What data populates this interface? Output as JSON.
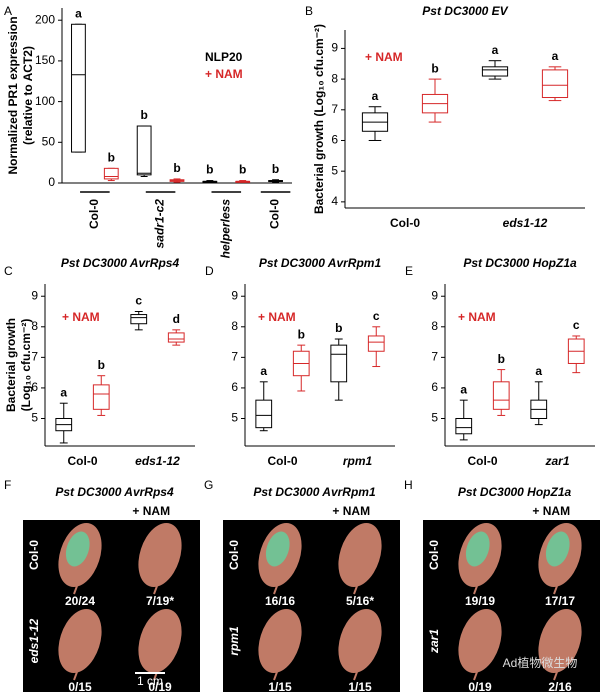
{
  "chart_data": [
    {
      "type": "box",
      "panel": "A",
      "ylabel": [
        "Normalized PR1 expression",
        "(relative to ACT2)"
      ],
      "legend": [
        {
          "name": "NLP20",
          "color": "#000000"
        },
        {
          "name": "+ NAM",
          "color": "#d62728"
        }
      ],
      "groups": [
        "Col-0",
        "sadr1-c2",
        "helperless",
        "Col-0"
      ],
      "ylim": [
        0,
        215
      ],
      "yticks": [
        0,
        50,
        100,
        150,
        200
      ],
      "boxes": [
        {
          "color": "#000000",
          "letter": "a",
          "low": 38,
          "q1": 38,
          "median": 133,
          "q3": 195,
          "high": 195
        },
        {
          "color": "#d62728",
          "letter": "b",
          "low": 3,
          "q1": 5,
          "median": 8,
          "q3": 18,
          "high": 18
        },
        {
          "color": "#000000",
          "letter": "b",
          "low": 8,
          "q1": 10,
          "median": 12,
          "q3": 70,
          "high": 70
        },
        {
          "color": "#d62728",
          "letter": "b",
          "low": 1,
          "q1": 2,
          "median": 3,
          "q3": 4,
          "high": 5
        },
        {
          "color": "#000000",
          "letter": "b",
          "low": 1,
          "q1": 1,
          "median": 2,
          "q3": 2,
          "high": 3
        },
        {
          "color": "#d62728",
          "letter": "b",
          "low": 1,
          "q1": 1,
          "median": 2,
          "q3": 2,
          "high": 3
        },
        {
          "color": "#000000",
          "letter": "b",
          "low": 1,
          "q1": 2,
          "median": 3,
          "q3": 3,
          "high": 4
        }
      ]
    },
    {
      "type": "box",
      "panel": "B",
      "title": "Pst DC3000 EV",
      "ylabel": [
        "Bacterial growth (Log₁₀ cfu.cm⁻²)"
      ],
      "legend": [
        {
          "name": "+ NAM",
          "color": "#d62728"
        }
      ],
      "groups": [
        "Col-0",
        "eds1-12"
      ],
      "ylim": [
        3.8,
        9.6
      ],
      "yticks": [
        4,
        5,
        6,
        7,
        8,
        9
      ],
      "boxes": [
        {
          "color": "#000000",
          "letter": "a",
          "low": 6.0,
          "q1": 6.3,
          "median": 6.6,
          "q3": 6.9,
          "high": 7.1
        },
        {
          "color": "#d62728",
          "letter": "b",
          "low": 6.6,
          "q1": 6.9,
          "median": 7.2,
          "q3": 7.5,
          "high": 8.0
        },
        {
          "color": "#000000",
          "letter": "a",
          "low": 8.0,
          "q1": 8.1,
          "median": 8.3,
          "q3": 8.4,
          "high": 8.6
        },
        {
          "color": "#d62728",
          "letter": "a",
          "low": 7.3,
          "q1": 7.4,
          "median": 7.8,
          "q3": 8.3,
          "high": 8.4
        }
      ]
    },
    {
      "type": "box",
      "panel": "C",
      "title": "Pst DC3000 AvrRps4",
      "ylabel": [
        "Bacterial growth",
        "(Log₁₀ cfu.cm⁻²)"
      ],
      "legend": [
        {
          "name": "+ NAM",
          "color": "#d62728"
        }
      ],
      "groups": [
        "Col-0",
        "eds1-12"
      ],
      "ylim": [
        4.1,
        9.4
      ],
      "yticks": [
        5,
        6,
        7,
        8,
        9
      ],
      "boxes": [
        {
          "color": "#000000",
          "letter": "a",
          "low": 4.2,
          "q1": 4.6,
          "median": 4.8,
          "q3": 5.0,
          "high": 5.5
        },
        {
          "color": "#d62728",
          "letter": "b",
          "low": 5.1,
          "q1": 5.3,
          "median": 5.8,
          "q3": 6.1,
          "high": 6.4
        },
        {
          "color": "#000000",
          "letter": "c",
          "low": 7.9,
          "q1": 8.1,
          "median": 8.3,
          "q3": 8.4,
          "high": 8.5
        },
        {
          "color": "#d62728",
          "letter": "d",
          "low": 7.4,
          "q1": 7.5,
          "median": 7.6,
          "q3": 7.8,
          "high": 7.9
        }
      ]
    },
    {
      "type": "box",
      "panel": "D",
      "title": "Pst DC3000 AvrRpm1",
      "legend": [
        {
          "name": "+ NAM",
          "color": "#d62728"
        }
      ],
      "groups": [
        "Col-0",
        "rpm1"
      ],
      "ylim": [
        4.1,
        9.4
      ],
      "yticks": [
        5,
        6,
        7,
        8,
        9
      ],
      "boxes": [
        {
          "color": "#000000",
          "letter": "a",
          "low": 4.6,
          "q1": 4.7,
          "median": 5.1,
          "q3": 5.6,
          "high": 6.2
        },
        {
          "color": "#d62728",
          "letter": "b",
          "low": 5.9,
          "q1": 6.4,
          "median": 6.8,
          "q3": 7.2,
          "high": 7.4
        },
        {
          "color": "#000000",
          "letter": "b",
          "low": 5.6,
          "q1": 6.2,
          "median": 7.1,
          "q3": 7.4,
          "high": 7.6
        },
        {
          "color": "#d62728",
          "letter": "c",
          "low": 6.7,
          "q1": 7.2,
          "median": 7.5,
          "q3": 7.7,
          "high": 8.0
        }
      ]
    },
    {
      "type": "box",
      "panel": "E",
      "title": "Pst DC3000 HopZ1a",
      "legend": [
        {
          "name": "+ NAM",
          "color": "#d62728"
        }
      ],
      "groups": [
        "Col-0",
        "zar1"
      ],
      "ylim": [
        4.1,
        9.4
      ],
      "yticks": [
        5,
        6,
        7,
        8,
        9
      ],
      "boxes": [
        {
          "color": "#000000",
          "letter": "a",
          "low": 4.3,
          "q1": 4.5,
          "median": 4.7,
          "q3": 5.0,
          "high": 5.6
        },
        {
          "color": "#d62728",
          "letter": "b",
          "low": 5.1,
          "q1": 5.3,
          "median": 5.6,
          "q3": 6.2,
          "high": 6.6
        },
        {
          "color": "#000000",
          "letter": "a",
          "low": 4.8,
          "q1": 5.0,
          "median": 5.3,
          "q3": 5.6,
          "high": 6.2
        },
        {
          "color": "#d62728",
          "letter": "c",
          "low": 6.5,
          "q1": 6.8,
          "median": 7.2,
          "q3": 7.6,
          "high": 7.7
        }
      ]
    }
  ],
  "image_panels": [
    {
      "panel": "F",
      "title": "Pst DC3000 AvrRps4",
      "treatment": "+ NAM",
      "scale": "1 cm",
      "rows": [
        {
          "label": "Col-0",
          "counts": [
            "20/24",
            "7/19*"
          ]
        },
        {
          "label": "eds1-12",
          "counts": [
            "0/15",
            "0/19"
          ]
        }
      ]
    },
    {
      "panel": "G",
      "title": "Pst DC3000 AvrRpm1",
      "treatment": "+ NAM",
      "rows": [
        {
          "label": "Col-0",
          "counts": [
            "16/16",
            "5/16*"
          ]
        },
        {
          "label": "rpm1",
          "counts": [
            "1/15",
            "1/15"
          ]
        }
      ]
    },
    {
      "panel": "H",
      "title": "Pst DC3000 HopZ1a",
      "treatment": "+ NAM",
      "rows": [
        {
          "label": "Col-0",
          "counts": [
            "19/19",
            "17/17"
          ]
        },
        {
          "label": "zar1",
          "counts": [
            "0/19",
            "2/16"
          ]
        }
      ]
    }
  ],
  "watermark": "Ad植物微生物"
}
